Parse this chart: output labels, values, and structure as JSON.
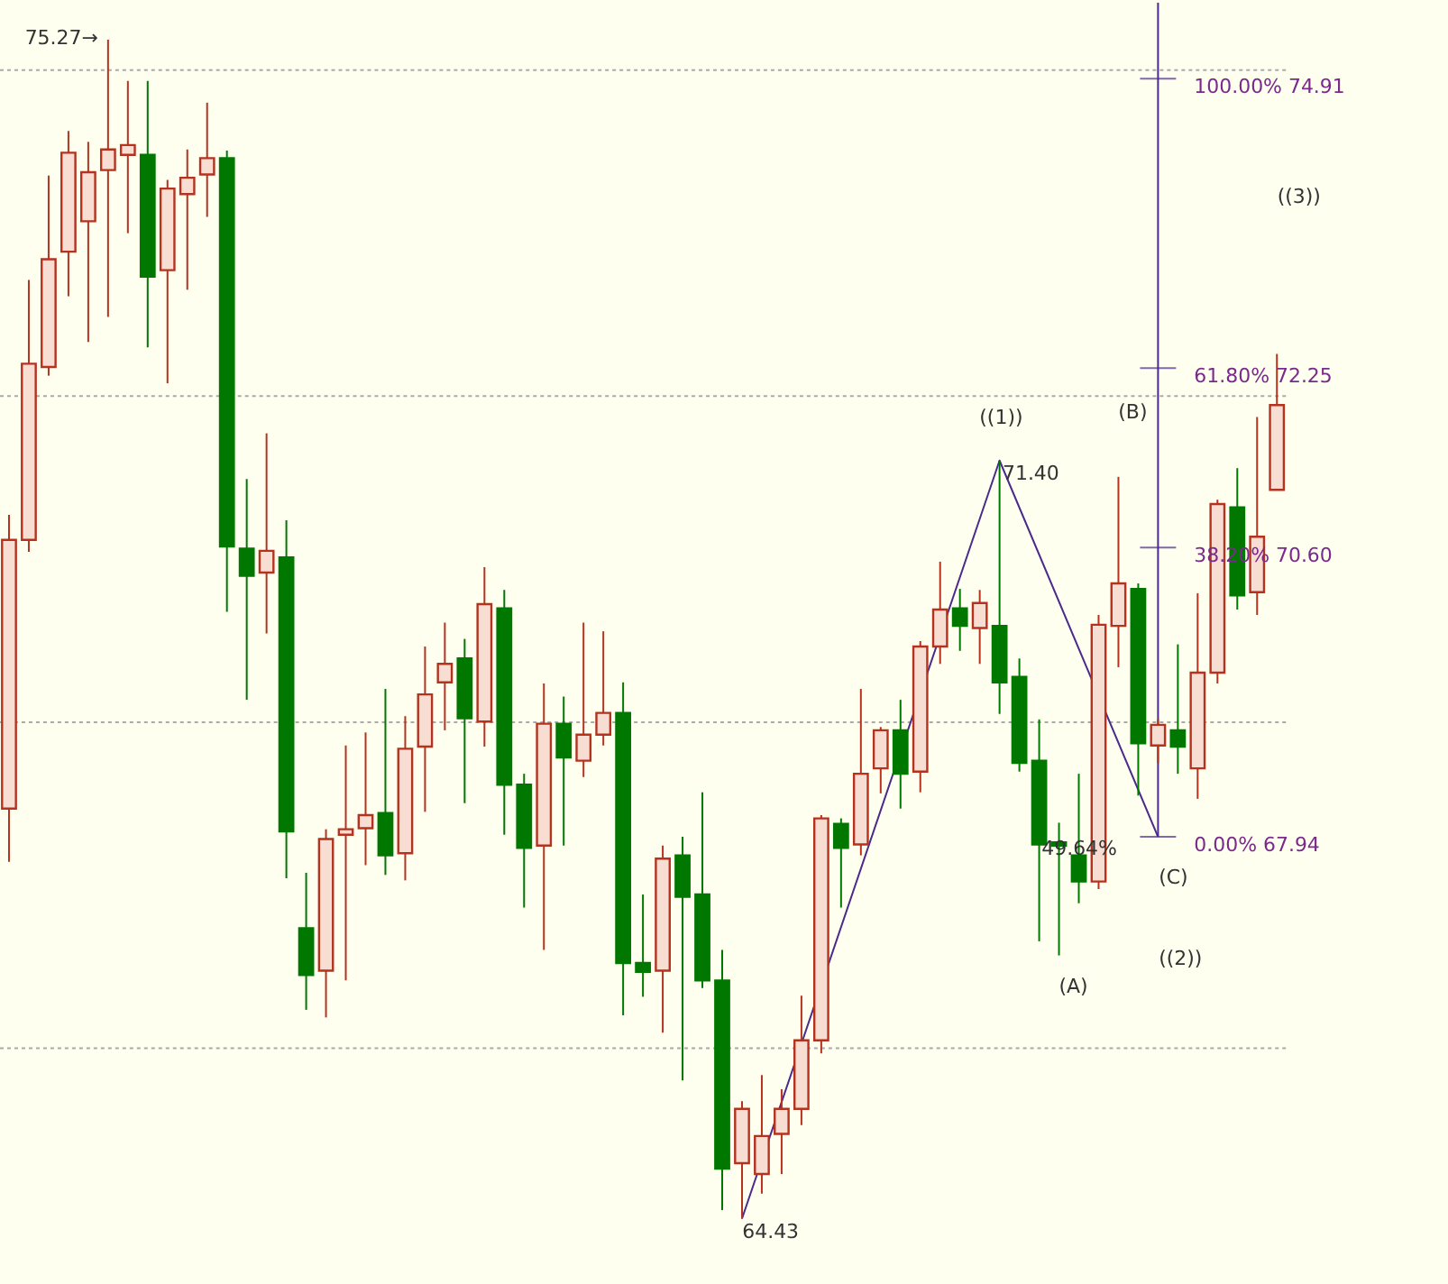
{
  "chart_data": {
    "type": "candlestick",
    "categories": [
      null,
      null,
      null,
      null,
      null,
      null,
      null,
      null,
      null,
      null,
      null,
      null,
      null,
      null,
      null,
      null,
      null,
      null,
      null,
      null,
      null,
      null,
      null,
      null,
      null,
      null,
      null,
      null,
      null,
      null,
      null,
      null,
      null,
      null,
      null,
      null,
      null,
      null,
      null,
      null,
      null,
      null,
      null,
      null,
      null,
      null,
      null,
      null,
      null,
      null,
      null,
      null,
      null,
      null,
      null,
      null,
      null,
      null,
      null,
      null,
      null,
      null,
      null,
      null,
      null
    ],
    "ohlc": [
      [
        68.2,
        70.9,
        67.71,
        70.67
      ],
      [
        70.67,
        73.06,
        70.56,
        72.29
      ],
      [
        72.26,
        74.02,
        72.18,
        73.25
      ],
      [
        73.32,
        74.43,
        72.91,
        74.23
      ],
      [
        73.6,
        74.33,
        72.49,
        74.05
      ],
      [
        74.07,
        75.27,
        72.72,
        74.26
      ],
      [
        74.21,
        74.89,
        73.49,
        74.3
      ],
      [
        74.21,
        74.89,
        72.44,
        73.09
      ],
      [
        73.15,
        73.98,
        72.11,
        73.9
      ],
      [
        73.85,
        74.26,
        72.97,
        74.0
      ],
      [
        74.03,
        74.69,
        73.64,
        74.18
      ],
      [
        74.18,
        74.25,
        70.01,
        70.61
      ],
      [
        70.59,
        71.23,
        69.2,
        70.34
      ],
      [
        70.37,
        71.65,
        69.81,
        70.57
      ],
      [
        70.51,
        70.85,
        67.56,
        67.99
      ],
      [
        67.1,
        67.61,
        66.35,
        66.67
      ],
      [
        66.71,
        68.01,
        66.28,
        67.92
      ],
      [
        67.96,
        68.78,
        66.62,
        68.01
      ],
      [
        68.02,
        68.9,
        67.68,
        68.14
      ],
      [
        68.16,
        69.3,
        67.59,
        67.77
      ],
      [
        67.79,
        69.05,
        67.54,
        68.75
      ],
      [
        68.77,
        69.69,
        68.17,
        69.25
      ],
      [
        69.36,
        69.91,
        68.92,
        69.53
      ],
      [
        69.58,
        69.76,
        68.25,
        69.03
      ],
      [
        69.0,
        70.42,
        68.77,
        70.08
      ],
      [
        70.04,
        70.21,
        67.96,
        68.42
      ],
      [
        68.42,
        68.52,
        67.29,
        67.84
      ],
      [
        67.86,
        69.35,
        66.9,
        68.98
      ],
      [
        68.98,
        69.23,
        67.86,
        68.67
      ],
      [
        68.64,
        69.91,
        68.49,
        68.88
      ],
      [
        68.88,
        69.83,
        68.78,
        69.08
      ],
      [
        69.08,
        69.36,
        66.3,
        66.78
      ],
      [
        66.78,
        67.41,
        66.47,
        66.7
      ],
      [
        66.71,
        67.86,
        66.14,
        67.74
      ],
      [
        67.77,
        67.94,
        65.7,
        67.39
      ],
      [
        67.41,
        68.35,
        66.55,
        66.62
      ],
      [
        66.62,
        66.9,
        64.51,
        64.89
      ],
      [
        64.94,
        65.51,
        64.43,
        65.44
      ],
      [
        64.84,
        65.75,
        64.66,
        65.19
      ],
      [
        65.21,
        65.62,
        64.84,
        65.44
      ],
      [
        65.44,
        66.48,
        65.29,
        66.07
      ],
      [
        66.07,
        68.14,
        65.95,
        68.11
      ],
      [
        68.06,
        68.11,
        67.29,
        67.84
      ],
      [
        67.87,
        69.3,
        67.77,
        68.52
      ],
      [
        68.57,
        68.95,
        68.34,
        68.92
      ],
      [
        68.92,
        69.2,
        68.2,
        68.52
      ],
      [
        68.54,
        69.74,
        68.35,
        69.69
      ],
      [
        69.69,
        70.47,
        69.53,
        70.03
      ],
      [
        70.04,
        70.22,
        69.65,
        69.88
      ],
      [
        69.86,
        70.21,
        69.53,
        70.09
      ],
      [
        69.88,
        71.4,
        69.07,
        69.36
      ],
      [
        69.41,
        69.58,
        68.54,
        68.62
      ],
      [
        68.64,
        69.02,
        66.98,
        67.87
      ],
      [
        67.89,
        68.07,
        66.85,
        67.86
      ],
      [
        67.77,
        68.52,
        67.33,
        67.53
      ],
      [
        67.53,
        69.98,
        67.46,
        69.89
      ],
      [
        69.88,
        71.25,
        69.5,
        70.27
      ],
      [
        70.22,
        70.27,
        68.32,
        68.8
      ],
      [
        68.78,
        69.02,
        68.62,
        68.97
      ],
      [
        68.92,
        69.71,
        68.52,
        68.77
      ],
      [
        68.57,
        70.18,
        68.29,
        69.45
      ],
      [
        69.45,
        71.04,
        69.35,
        71.0
      ],
      [
        70.97,
        71.33,
        70.03,
        70.16
      ],
      [
        70.19,
        71.8,
        69.98,
        70.7
      ],
      [
        71.13,
        72.38,
        71.13,
        71.91
      ]
    ],
    "colors": [
      "#b5321f",
      "#b5321f",
      "#b5321f",
      "#b5321f",
      "#b5321f",
      "#b5321f",
      "#b5321f",
      "#007800",
      "#b5321f",
      "#b5321f",
      "#b5321f",
      "#007800",
      "#007800",
      "#b5321f",
      "#007800",
      "#007800",
      "#b5321f",
      "#b5321f",
      "#b5321f",
      "#007800",
      "#b5321f",
      "#b5321f",
      "#b5321f",
      "#007800",
      "#b5321f",
      "#007800",
      "#007800",
      "#b5321f",
      "#007800",
      "#b5321f",
      "#b5321f",
      "#007800",
      "#007800",
      "#b5321f",
      "#007800",
      "#007800",
      "#007800",
      "#b5321f",
      "#b5321f",
      "#b5321f",
      "#b5321f",
      "#b5321f",
      "#007800",
      "#b5321f",
      "#b5321f",
      "#007800",
      "#b5321f",
      "#b5321f",
      "#007800",
      "#b5321f",
      "#007800",
      "#007800",
      "#007800",
      "#007800",
      "#007800",
      "#b5321f",
      "#b5321f",
      "#007800",
      "#b5321f",
      "#007800",
      "#b5321f",
      "#b5321f",
      "#007800",
      "#b5321f",
      "#b5321f"
    ],
    "series": [
      {
        "type": "line",
        "color": "#4b2a8c",
        "values": [
          null,
          null,
          null,
          null,
          null,
          null,
          null,
          null,
          null,
          null,
          null,
          null,
          null,
          null,
          null,
          null,
          null,
          null,
          null,
          null,
          null,
          null,
          null,
          null,
          null,
          null,
          null,
          null,
          null,
          null,
          null,
          null,
          null,
          null,
          null,
          null,
          null,
          64.43,
          null,
          null,
          null,
          null,
          null,
          null,
          null,
          null,
          null,
          null,
          null,
          null,
          71.4,
          null,
          null,
          null,
          null,
          null,
          null,
          null,
          67.94,
          null,
          null,
          null,
          null,
          null,
          null
        ]
      }
    ],
    "ref_lines": [
      {
        "axis": "y",
        "value": 74.91,
        "label": "100.00%   74.91",
        "color": "#4b2a8c"
      },
      {
        "axis": "y",
        "value": 72.25,
        "label": "61.80%   72.25",
        "color": "#4b2a8c"
      },
      {
        "axis": "y",
        "value": 70.6,
        "label": "38.20%   70.60",
        "color": "#4b2a8c"
      },
      {
        "axis": "y",
        "value": 67.94,
        "label": "0.00%   67.94",
        "color": "#4b2a8c"
      }
    ],
    "annotations": [
      "75.27→",
      "64.43",
      "71.40",
      "((1))",
      "(B)",
      "49.64%",
      "(A)",
      "(C)",
      "((2))",
      "((3))"
    ],
    "ylim": [
      63.82,
      75.61
    ],
    "yticks": [
      {
        "value": 66,
        "label": null
      },
      {
        "value": 69,
        "label": null
      },
      {
        "value": 72,
        "label": null
      },
      {
        "value": 75,
        "label": null
      }
    ],
    "grid": "y",
    "tick_labels": false
  }
}
